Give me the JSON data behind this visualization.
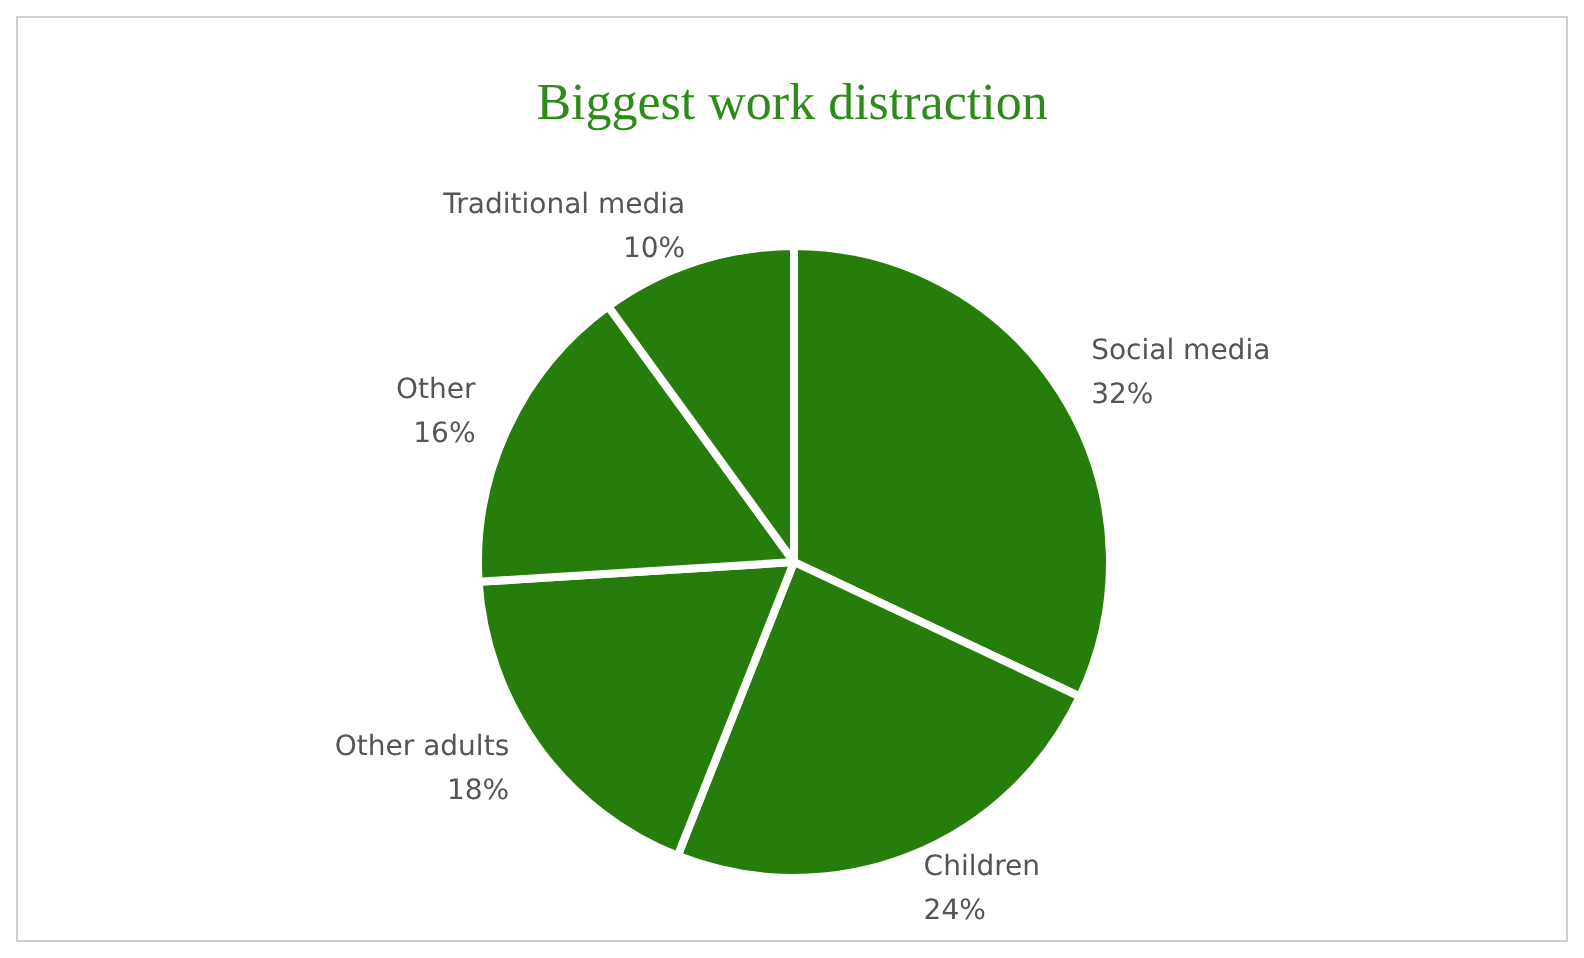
{
  "chart_data": {
    "type": "pie",
    "title": "Biggest work distraction",
    "categories": [
      "Social media",
      "Children",
      "Other adults",
      "Other",
      "Traditional media"
    ],
    "values": [
      32,
      24,
      18,
      16,
      10
    ],
    "value_labels": [
      "32%",
      "24%",
      "18%",
      "16%",
      "10%"
    ],
    "colors": [
      "#267d0c",
      "#267d0c",
      "#267d0c",
      "#267d0c",
      "#267d0c"
    ]
  }
}
